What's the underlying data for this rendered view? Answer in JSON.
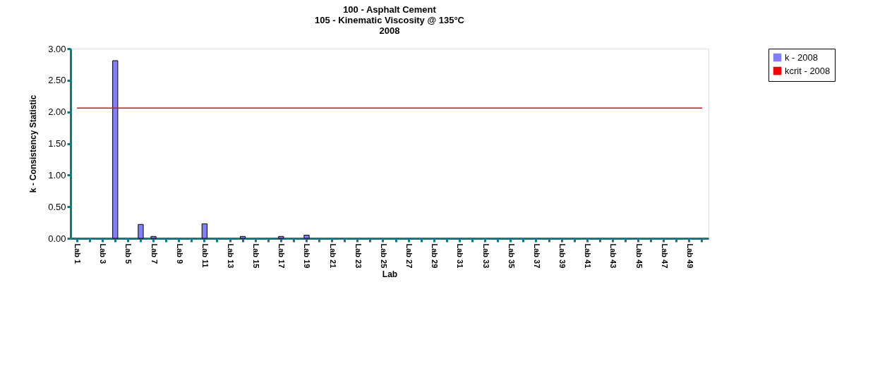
{
  "chart_data": {
    "type": "bar",
    "title": "100 - Asphalt Cement\n105 - Kinematic Viscosity @ 135°C\n2008",
    "xlabel": "Lab",
    "ylabel": "k - Consistency Statistic",
    "categories": [
      "Lab 1",
      null,
      "Lab 3",
      null,
      "Lab 5",
      null,
      "Lab 7",
      null,
      "Lab 9",
      null,
      "Lab 11",
      null,
      "Lab 13",
      null,
      "Lab 15",
      null,
      "Lab 17",
      null,
      "Lab 19",
      null,
      "Lab 21",
      null,
      "Lab 23",
      null,
      "Lab 25",
      null,
      "Lab 27",
      null,
      "Lab 29",
      null,
      "Lab 31",
      null,
      "Lab 33",
      null,
      "Lab 35",
      null,
      "Lab 37",
      null,
      "Lab 39",
      null,
      "Lab 41",
      null,
      "Lab 43",
      null,
      "Lab 45",
      null,
      "Lab 47",
      null,
      "Lab 49",
      null
    ],
    "series": [
      {
        "name": "k - 2008",
        "color": "#8080ff",
        "values": [
          null,
          null,
          null,
          2.81,
          null,
          0.22,
          0.03,
          null,
          null,
          null,
          0.23,
          null,
          null,
          0.03,
          null,
          null,
          0.03,
          null,
          0.05,
          null,
          null,
          null,
          null,
          null,
          null,
          null,
          null,
          null,
          null,
          null,
          null,
          null,
          null,
          null,
          null,
          null,
          null,
          null,
          null,
          null,
          null,
          null,
          null,
          null,
          null,
          null,
          null,
          null,
          null,
          null
        ]
      },
      {
        "name": "kcrit - 2008",
        "type": "line",
        "color": "#ff0000",
        "values": [
          2.06,
          2.06,
          2.06,
          2.06,
          2.06,
          2.06,
          2.06,
          2.06,
          2.06,
          2.06,
          2.06,
          2.06,
          2.06,
          2.06,
          2.06,
          2.06,
          2.06,
          2.06,
          2.06,
          2.06,
          2.06,
          2.06,
          2.06,
          2.06,
          2.06,
          2.06,
          2.06,
          2.06,
          2.06,
          2.06,
          2.06,
          2.06,
          2.06,
          2.06,
          2.06,
          2.06,
          2.06,
          2.06,
          2.06,
          2.06,
          2.06,
          2.06,
          2.06,
          2.06,
          2.06,
          2.06,
          2.06,
          2.06,
          2.06,
          2.06
        ]
      }
    ],
    "ylim": [
      0,
      3
    ],
    "yticks": [
      {
        "value": 0,
        "label": "0.00"
      },
      {
        "value": 0.5,
        "label": "0.50"
      },
      {
        "value": 1,
        "label": "1.00"
      },
      {
        "value": 1.5,
        "label": "1.50"
      },
      {
        "value": 2,
        "label": "2.00"
      },
      {
        "value": 2.5,
        "label": "2.50"
      },
      {
        "value": 3,
        "label": "3.00"
      }
    ],
    "grid": false,
    "legend": "right"
  }
}
